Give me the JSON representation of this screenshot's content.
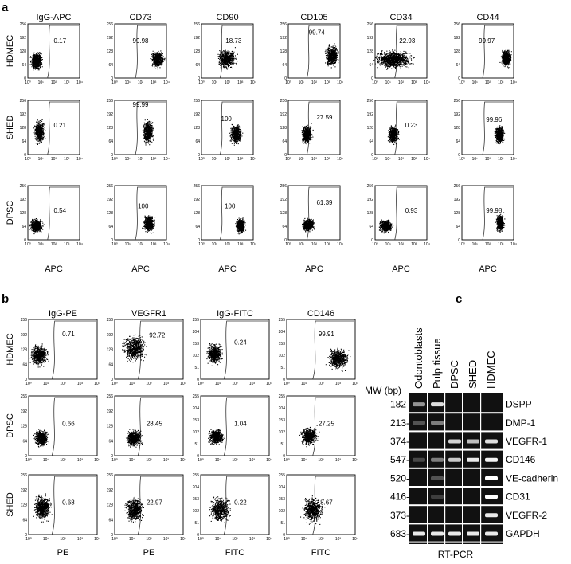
{
  "panel_labels": {
    "a": "a",
    "b": "b",
    "c": "c"
  },
  "tick_text": {
    "y": [
      "0",
      "64",
      "128",
      "192",
      "256"
    ],
    "x": [
      "10⁰",
      "10¹",
      "10²",
      "10³",
      "10⁴"
    ]
  },
  "panel_a": {
    "columns": [
      "IgG-APC",
      "CD73",
      "CD90",
      "CD105",
      "CD34",
      "CD44"
    ],
    "rows": [
      "HDMEC",
      "SHED",
      "DPSC"
    ],
    "x_label": "APC",
    "values": [
      [
        "0.17",
        "99.98",
        "18.73",
        "99.74",
        "22.93",
        "99.97"
      ],
      [
        "0.21",
        "99.99",
        "100",
        "27.59",
        "0.23",
        "99.96"
      ],
      [
        "0.54",
        "100",
        "100",
        "61.39",
        "0.93",
        "99.98"
      ]
    ]
  },
  "panel_b": {
    "columns": [
      "IgG-PE",
      "VEGFR1",
      "IgG-FITC",
      "CD146"
    ],
    "rows": [
      "HDMEC",
      "DPSC",
      "SHED"
    ],
    "x_labels": [
      "PE",
      "PE",
      "FITC",
      "FITC"
    ],
    "values": [
      [
        "0.71",
        "92.72",
        "0.24",
        "99.91"
      ],
      [
        "0.66",
        "28.45",
        "1.04",
        "27.25"
      ],
      [
        "0.68",
        "22.97",
        "0.22",
        "8.67"
      ]
    ],
    "y_ticks": [
      [
        "0",
        "64",
        "128",
        "192",
        "256"
      ],
      [
        "0",
        "64",
        "128",
        "192",
        "256"
      ],
      [
        "0",
        "51",
        "102",
        "153",
        "204",
        "255"
      ],
      [
        "0",
        "51",
        "102",
        "153",
        "204",
        "255"
      ]
    ]
  },
  "panel_c": {
    "lanes": [
      "Odontoblasts",
      "Pulp tissue",
      "DPSC",
      "SHED",
      "HDMEC"
    ],
    "mw_header": "MW (bp)",
    "bands": [
      {
        "mw": "182-",
        "gene": "DSPP",
        "intensity": [
          0.5,
          0.85,
          0,
          0,
          0
        ]
      },
      {
        "mw": "213-",
        "gene": "DMP-1",
        "intensity": [
          0.2,
          0.4,
          0,
          0,
          0
        ]
      },
      {
        "mw": "374-",
        "gene": "VEGFR-1",
        "intensity": [
          0,
          0,
          0.8,
          0.7,
          0.85
        ]
      },
      {
        "mw": "547-",
        "gene": "CD146",
        "intensity": [
          0.15,
          0.4,
          0.75,
          0.9,
          0.95
        ]
      },
      {
        "mw": "520-",
        "gene": "VE-cadherin",
        "intensity": [
          0,
          0.2,
          0,
          0,
          1
        ]
      },
      {
        "mw": "416-",
        "gene": "CD31",
        "intensity": [
          0,
          0.1,
          0,
          0,
          1
        ]
      },
      {
        "mw": "373-",
        "gene": "VEGFR-2",
        "intensity": [
          0,
          0,
          0,
          0,
          0.9
        ]
      },
      {
        "mw": "683-",
        "gene": "GAPDH",
        "intensity": [
          0.9,
          0.9,
          0.9,
          0.9,
          0.9
        ]
      }
    ],
    "method_label": "RT-PCR"
  }
}
